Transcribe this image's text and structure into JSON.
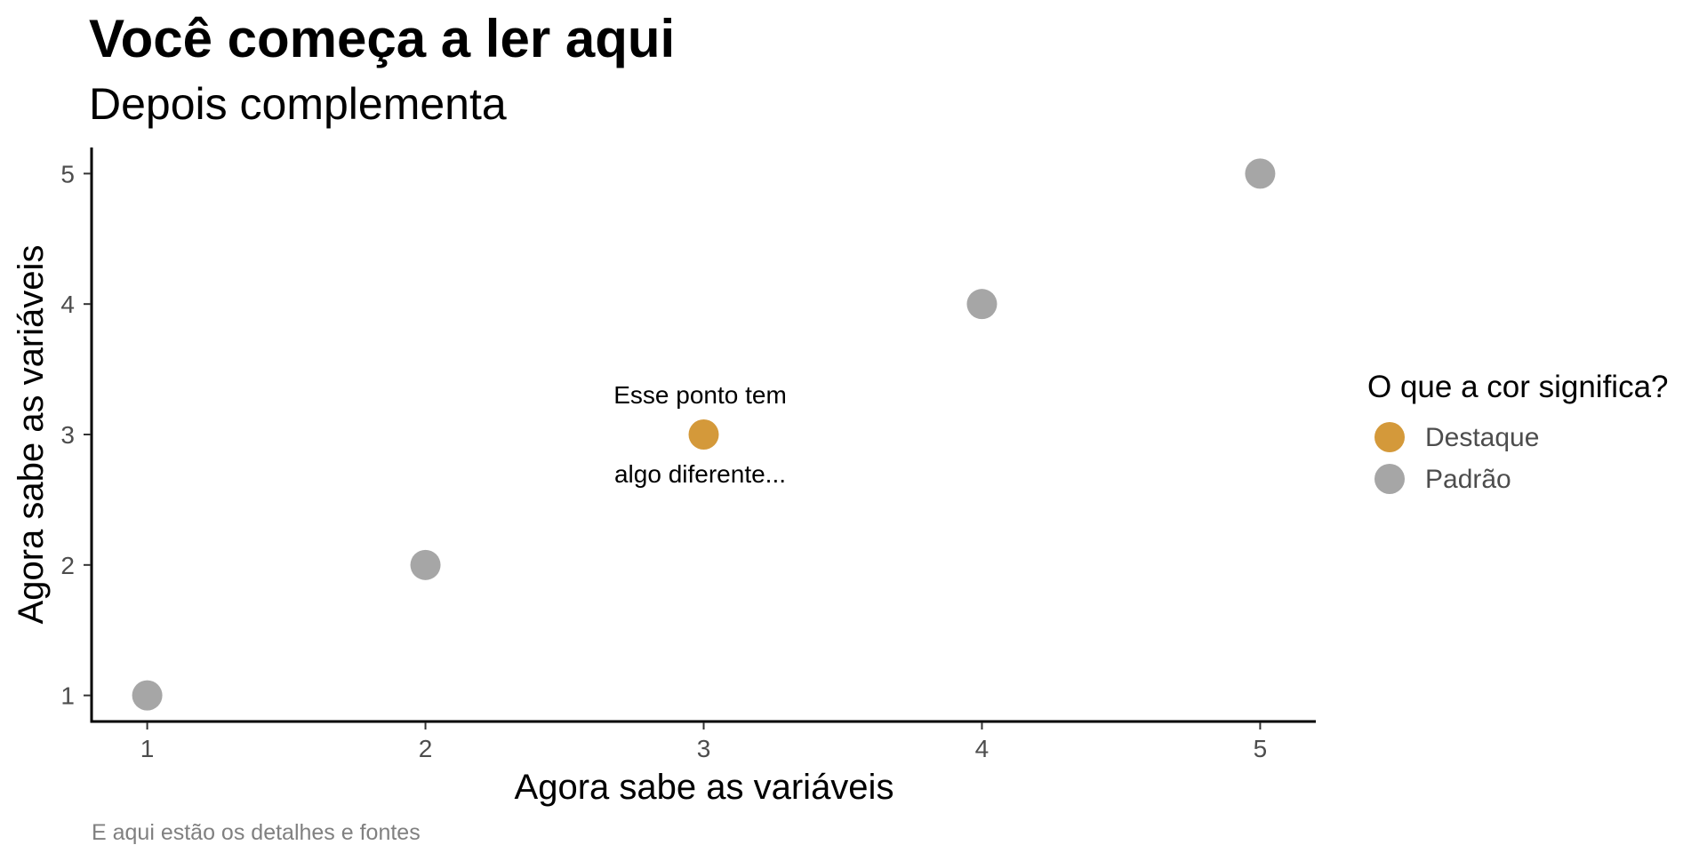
{
  "chart_data": {
    "type": "scatter",
    "title": "Você começa a ler aqui",
    "subtitle": "Depois complementa",
    "caption": "E aqui estão os detalhes e fontes",
    "xlabel": "Agora sabe as variáveis",
    "ylabel": "Agora sabe as variáveis",
    "xlim": [
      0.8,
      5.2
    ],
    "ylim": [
      0.8,
      5.2
    ],
    "xticks": [
      1,
      2,
      3,
      4,
      5
    ],
    "yticks": [
      1,
      2,
      3,
      4,
      5
    ],
    "grid": false,
    "legend": {
      "title": "O que a cor significa?",
      "position": "right",
      "entries": [
        {
          "label": "Destaque",
          "color": "#D4993A"
        },
        {
          "label": "Padrão",
          "color": "#A6A6A6"
        }
      ]
    },
    "points": [
      {
        "x": 1,
        "y": 1,
        "group": "Padrão"
      },
      {
        "x": 2,
        "y": 2,
        "group": "Padrão"
      },
      {
        "x": 3,
        "y": 3,
        "group": "Destaque"
      },
      {
        "x": 4,
        "y": 4,
        "group": "Padrão"
      },
      {
        "x": 5,
        "y": 5,
        "group": "Padrão"
      }
    ],
    "annotations": [
      {
        "text": "Esse ponto tem",
        "x": 3,
        "y": 3,
        "position": "above"
      },
      {
        "text": "algo diferente...",
        "x": 3,
        "y": 3,
        "position": "below"
      }
    ]
  }
}
